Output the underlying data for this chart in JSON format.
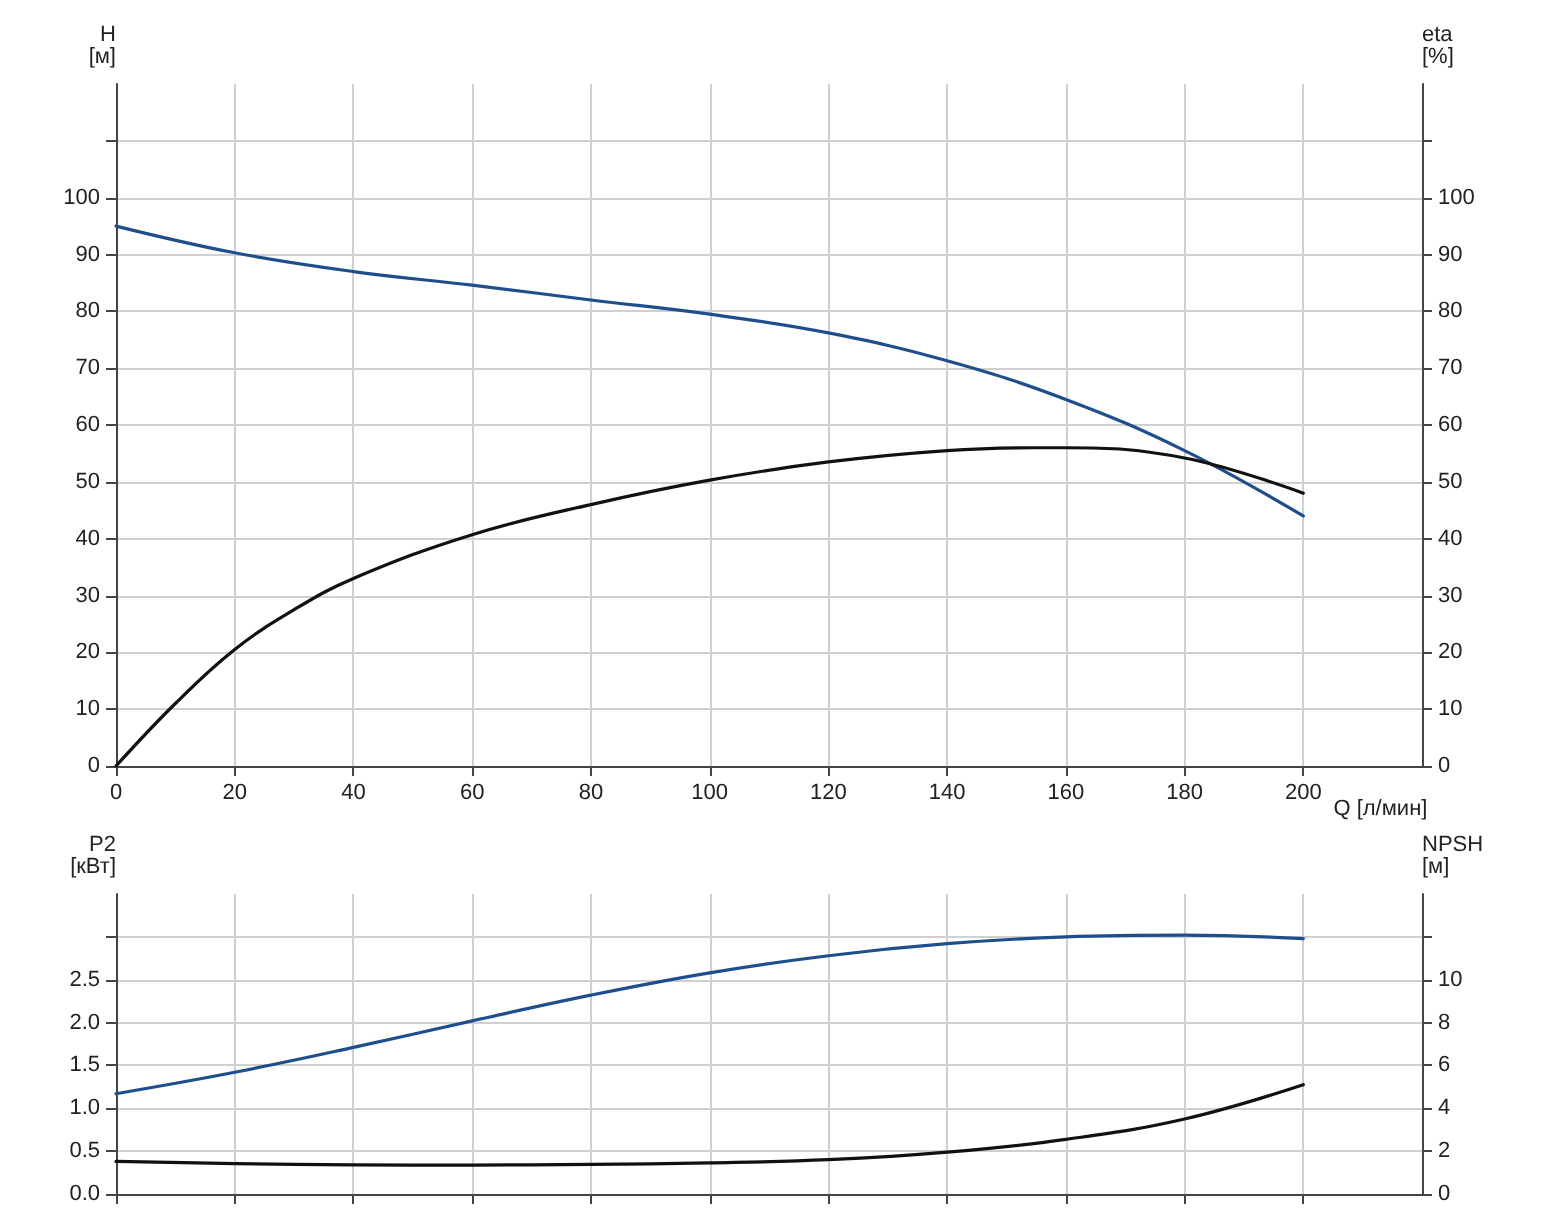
{
  "chart_data": [
    {
      "type": "line",
      "xlabel": "Q [л/мин]",
      "ylabel": "H\n[м]",
      "y2label": "eta\n[%]",
      "xlim": [
        0,
        220
      ],
      "xticks": [
        0,
        20,
        40,
        60,
        80,
        100,
        120,
        140,
        160,
        180,
        200
      ],
      "ylim": [
        0,
        120
      ],
      "yticks": [
        0,
        10,
        20,
        30,
        40,
        50,
        60,
        70,
        80,
        90,
        100,
        {
          "value": 110,
          "label": null
        }
      ],
      "y2lim": [
        0,
        120
      ],
      "y2ticks": [
        0,
        10,
        20,
        30,
        40,
        50,
        60,
        70,
        80,
        90,
        100,
        {
          "value": 110,
          "label": null
        }
      ],
      "grid": true,
      "marker": "none",
      "line_style": "solid",
      "series": [
        {
          "color": "#1f4e8c",
          "x": [
            0,
            20,
            40,
            60,
            80,
            100,
            120,
            140,
            160,
            180,
            200
          ],
          "values": [
            95,
            90.3,
            87,
            84.6,
            82,
            79.5,
            76.2,
            71.3,
            64.5,
            55.5,
            44
          ]
        },
        {
          "color": "#111111",
          "axis": "y2",
          "x": [
            0,
            10,
            20,
            30,
            40,
            60,
            80,
            100,
            120,
            140,
            155,
            160,
            180,
            200
          ],
          "values": [
            0,
            11,
            20.5,
            27.5,
            33,
            40.7,
            46,
            50.3,
            53.5,
            55.5,
            56,
            56,
            54.2,
            48
          ]
        }
      ]
    },
    {
      "type": "line",
      "ylabel": "P2\n[кВт]",
      "y2label": "NPSH\n[м]",
      "xlim": [
        0,
        220
      ],
      "xticks": [
        0,
        20,
        40,
        60,
        80,
        100,
        120,
        140,
        160,
        180,
        200
      ],
      "ylim": [
        0,
        3.5
      ],
      "yticks": [
        {
          "value": 0,
          "label": "0.0"
        },
        0.5,
        {
          "value": 1,
          "label": "1.0"
        },
        1.5,
        {
          "value": 2,
          "label": "2.0"
        },
        2.5,
        {
          "value": 3,
          "label": null
        }
      ],
      "y2lim": [
        0,
        14
      ],
      "y2ticks": [
        0,
        2,
        4,
        6,
        8,
        10,
        {
          "value": 12,
          "label": null
        }
      ],
      "grid": true,
      "tick_labels": "y",
      "marker": "none",
      "line_style": "solid",
      "series": [
        {
          "color": "#1f4e8c",
          "x": [
            0,
            20,
            40,
            60,
            80,
            100,
            120,
            140,
            160,
            180,
            200
          ],
          "values": [
            1.17,
            1.42,
            1.71,
            2.02,
            2.32,
            2.58,
            2.78,
            2.92,
            3.0,
            3.02,
            2.98
          ]
        },
        {
          "color": "#111111",
          "axis": "y2",
          "x": [
            0,
            20,
            40,
            60,
            80,
            100,
            120,
            140,
            160,
            180,
            200
          ],
          "values": [
            1.52,
            1.42,
            1.36,
            1.35,
            1.38,
            1.45,
            1.6,
            1.95,
            2.55,
            3.5,
            5.1
          ]
        }
      ]
    }
  ]
}
